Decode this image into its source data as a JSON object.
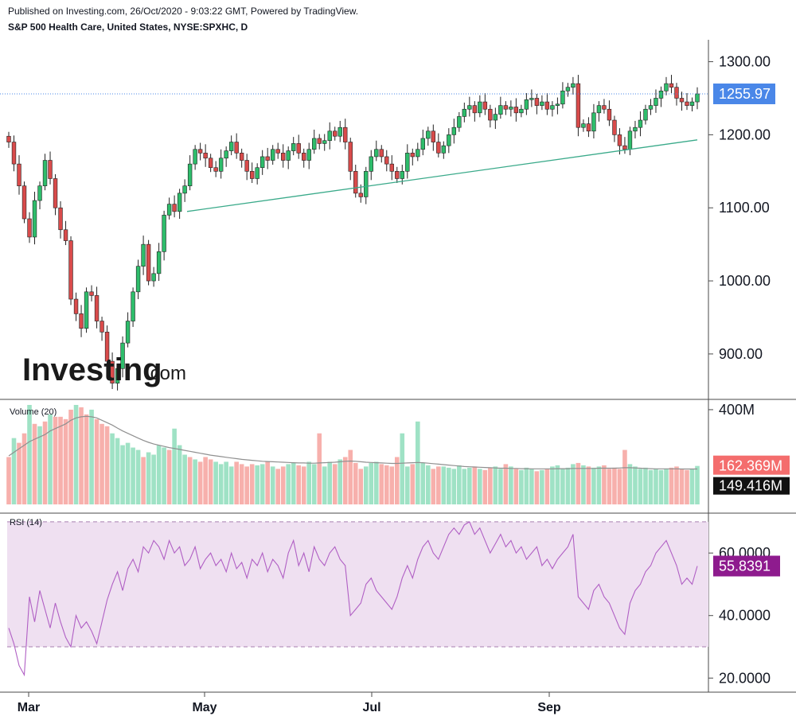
{
  "header": {
    "published": "Published on Investing.com, 26/Oct/2020 - 9:03:22 GMT, Powered by TradingView.",
    "instrument": "S&P 500 Health Care, United States, NYSE:SPXHC, D"
  },
  "logo": {
    "main": "Investing",
    "suffix": ".com"
  },
  "colors": {
    "up": "#26a65b",
    "up_fill": "#2ebd6b",
    "down": "#e04848",
    "down_fill": "#d94b4b",
    "vol_up": "#9fe2c5",
    "vol_down": "#f7b0ac",
    "ma_line": "#909090",
    "rsi_line": "#b05fc4",
    "rsi_band": "#efe0f1",
    "trendline": "#3aaa8a",
    "last_price_badge": "#4a87e8",
    "rsi_badge": "#8e1b8e"
  },
  "chart_data": [
    {
      "type": "candlestick",
      "title": "S&P 500 Health Care, United States, NYSE:SPXHC, D",
      "y_ticks": [
        "1300.00",
        "1200.00",
        "1100.00",
        "1000.00",
        "900.00"
      ],
      "ylim": [
        840,
        1330
      ],
      "x_ticks": [
        "Mar",
        "May",
        "Jul",
        "Sep"
      ],
      "last_price_label": "1255.97",
      "trendline": {
        "from": [
          0,
          1095
        ],
        "to": [
          1,
          1193
        ]
      },
      "close": [
        1190,
        1160,
        1130,
        1085,
        1060,
        1110,
        1130,
        1165,
        1140,
        1100,
        1070,
        1055,
        975,
        955,
        935,
        985,
        980,
        945,
        930,
        890,
        860,
        880,
        915,
        945,
        985,
        1020,
        1050,
        1000,
        1010,
        1040,
        1090,
        1105,
        1095,
        1120,
        1130,
        1160,
        1180,
        1175,
        1168,
        1155,
        1150,
        1168,
        1178,
        1190,
        1175,
        1165,
        1150,
        1140,
        1155,
        1170,
        1165,
        1180,
        1175,
        1165,
        1178,
        1188,
        1175,
        1165,
        1180,
        1195,
        1188,
        1192,
        1205,
        1198,
        1210,
        1190,
        1150,
        1120,
        1115,
        1150,
        1170,
        1180,
        1170,
        1160,
        1150,
        1140,
        1150,
        1175,
        1170,
        1180,
        1195,
        1205,
        1190,
        1175,
        1185,
        1200,
        1210,
        1225,
        1235,
        1240,
        1230,
        1245,
        1235,
        1220,
        1228,
        1240,
        1235,
        1238,
        1230,
        1235,
        1248,
        1250,
        1240,
        1245,
        1235,
        1240,
        1242,
        1260,
        1265,
        1270,
        1210,
        1215,
        1205,
        1230,
        1240,
        1235,
        1220,
        1200,
        1185,
        1180,
        1205,
        1210,
        1220,
        1235,
        1240,
        1250,
        1260,
        1270,
        1265,
        1250,
        1245,
        1240,
        1245,
        1255.97
      ]
    },
    {
      "type": "bar",
      "title": "Volume (20)",
      "y_ticks": [
        "400M"
      ],
      "ylim": [
        0,
        430
      ],
      "last_volume_label": "162.369M",
      "ma_label": "149.416M",
      "values": [
        200,
        280,
        260,
        300,
        420,
        340,
        330,
        350,
        380,
        370,
        370,
        360,
        400,
        420,
        410,
        380,
        400,
        360,
        340,
        330,
        300,
        280,
        250,
        260,
        240,
        230,
        200,
        220,
        210,
        250,
        240,
        230,
        320,
        250,
        210,
        200,
        190,
        180,
        200,
        190,
        180,
        170,
        180,
        160,
        180,
        170,
        160,
        170,
        165,
        170,
        180,
        160,
        150,
        160,
        170,
        175,
        165,
        160,
        180,
        170,
        300,
        160,
        180,
        170,
        190,
        200,
        230,
        175,
        150,
        160,
        175,
        180,
        170,
        165,
        160,
        200,
        300,
        160,
        170,
        350,
        175,
        165,
        150,
        160,
        160,
        155,
        150,
        165,
        150,
        155,
        160,
        150,
        145,
        155,
        160,
        150,
        170,
        160,
        150,
        145,
        155,
        150,
        140,
        145,
        150,
        160,
        165,
        150,
        155,
        170,
        175,
        165,
        160,
        155,
        160,
        165,
        150,
        155,
        150,
        230,
        170,
        160,
        150,
        155,
        145,
        150,
        145,
        150,
        155,
        160,
        150,
        145,
        150,
        162.369
      ],
      "ma": [
        205,
        220,
        235,
        250,
        265,
        275,
        285,
        295,
        310,
        320,
        330,
        340,
        355,
        365,
        370,
        372,
        370,
        365,
        355,
        345,
        335,
        322,
        310,
        300,
        290,
        280,
        270,
        262,
        255,
        250,
        245,
        240,
        236,
        232,
        228,
        224,
        220,
        216,
        212,
        208,
        205,
        202,
        199,
        196,
        193,
        190,
        188,
        186,
        184,
        182,
        181,
        180,
        179,
        178,
        177,
        176,
        175,
        175,
        174,
        174,
        175,
        176,
        177,
        178,
        180,
        182,
        183,
        182,
        180,
        178,
        177,
        176,
        175,
        174,
        173,
        173,
        174,
        175,
        176,
        177,
        176,
        174,
        172,
        170,
        168,
        166,
        164,
        162,
        160,
        159,
        158,
        157,
        156,
        155,
        154,
        153,
        153,
        152,
        152,
        151,
        151,
        150,
        150,
        150,
        150,
        150,
        151,
        151,
        151,
        152,
        152,
        152,
        152,
        152,
        153,
        153,
        153,
        153,
        154,
        155,
        155,
        154,
        153,
        152,
        151,
        150,
        150,
        150,
        150,
        150,
        149.5,
        149.4,
        149.4,
        149.416
      ],
      "down": [
        1,
        0,
        1,
        1,
        0,
        1,
        0,
        1,
        0,
        1,
        1,
        1,
        1,
        0,
        1,
        1,
        0,
        1,
        1,
        1,
        0,
        0,
        0,
        0,
        0,
        0,
        1,
        0,
        0,
        0,
        0,
        1,
        0,
        0,
        0,
        1,
        0,
        1,
        1,
        1,
        0,
        0,
        0,
        0,
        1,
        1,
        1,
        1,
        0,
        0,
        1,
        0,
        1,
        1,
        0,
        0,
        1,
        1,
        0,
        0,
        1,
        0,
        0,
        1,
        0,
        1,
        1,
        1,
        1,
        0,
        0,
        0,
        1,
        1,
        1,
        1,
        0,
        0,
        1,
        0,
        0,
        0,
        1,
        1,
        0,
        0,
        0,
        0,
        0,
        0,
        1,
        0,
        1,
        1,
        0,
        0,
        1,
        0,
        1,
        0,
        0,
        0,
        1,
        0,
        1,
        0,
        0,
        0,
        0,
        0,
        1,
        0,
        1,
        0,
        0,
        1,
        1,
        1,
        1,
        1,
        0,
        0,
        0,
        0,
        0,
        0,
        0,
        0,
        1,
        1,
        1,
        1,
        0,
        0
      ]
    },
    {
      "type": "line",
      "title": "RSI (14)",
      "y_ticks": [
        "60.0000",
        "40.0000",
        "20.0000"
      ],
      "ylim": [
        16,
        72
      ],
      "band": [
        30,
        70
      ],
      "last_value_label": "55.8391",
      "values": [
        36,
        31,
        24,
        21,
        46,
        38,
        48,
        42,
        36,
        44,
        38,
        33,
        30,
        40,
        36,
        38,
        35,
        31,
        38,
        45,
        50,
        54,
        48,
        55,
        58,
        54,
        62,
        60,
        64,
        62,
        58,
        64,
        60,
        62,
        56,
        58,
        62,
        55,
        58,
        60,
        56,
        58,
        54,
        60,
        55,
        57,
        52,
        58,
        56,
        60,
        54,
        58,
        56,
        52,
        60,
        64,
        56,
        60,
        54,
        62,
        58,
        56,
        60,
        62,
        58,
        56,
        40,
        42,
        44,
        50,
        52,
        48,
        46,
        44,
        42,
        46,
        52,
        56,
        52,
        58,
        62,
        64,
        60,
        58,
        62,
        66,
        68,
        66,
        69,
        70,
        66,
        68,
        64,
        60,
        63,
        66,
        62,
        64,
        60,
        62,
        58,
        60,
        62,
        56,
        58,
        55,
        58,
        60,
        62,
        66,
        46,
        44,
        42,
        48,
        50,
        46,
        44,
        40,
        36,
        34,
        44,
        48,
        50,
        54,
        56,
        60,
        62,
        64,
        60,
        56,
        50,
        52,
        50,
        55.8391
      ]
    }
  ]
}
